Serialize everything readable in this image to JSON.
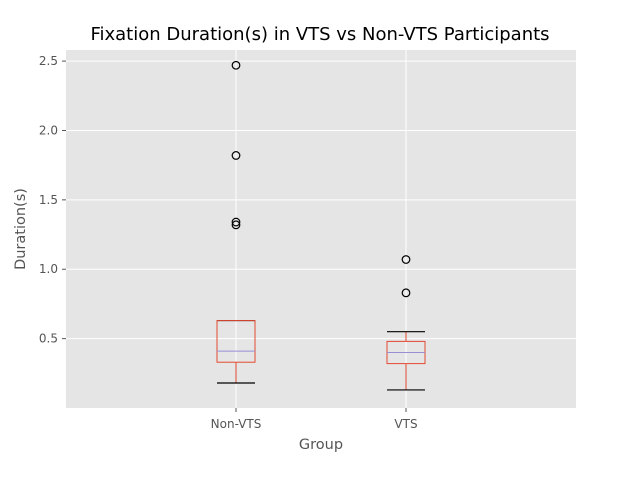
{
  "chart_data": {
    "type": "box",
    "title": "Fixation Duration(s) in VTS vs Non-VTS Participants",
    "xlabel": "Group",
    "ylabel": "Duration(s)",
    "ylim": [
      0.0,
      2.58
    ],
    "yticks": [
      0.5,
      1.0,
      1.5,
      2.0,
      2.5
    ],
    "ytick_labels": [
      "0.5",
      "1.0",
      "1.5",
      "2.0",
      "2.5"
    ],
    "grid": true,
    "categories": [
      "Non-VTS",
      "VTS"
    ],
    "boxes": [
      {
        "name": "Non-VTS",
        "whisker_low": 0.18,
        "q1": 0.33,
        "median": 0.41,
        "q3": 0.63,
        "whisker_high": 0.63,
        "outliers": [
          1.32,
          1.34,
          1.82,
          2.47
        ]
      },
      {
        "name": "VTS",
        "whisker_low": 0.13,
        "q1": 0.32,
        "median": 0.4,
        "q3": 0.48,
        "whisker_high": 0.55,
        "outliers": [
          0.83,
          1.07
        ]
      }
    ],
    "colors": {
      "plot_background": "#E5E5E5",
      "grid": "#FFFFFF",
      "box": "#E24A33",
      "median": "#988ED5",
      "whisker_cap": "#000000",
      "outlier": "#000000",
      "tick_text": "#555555"
    }
  }
}
